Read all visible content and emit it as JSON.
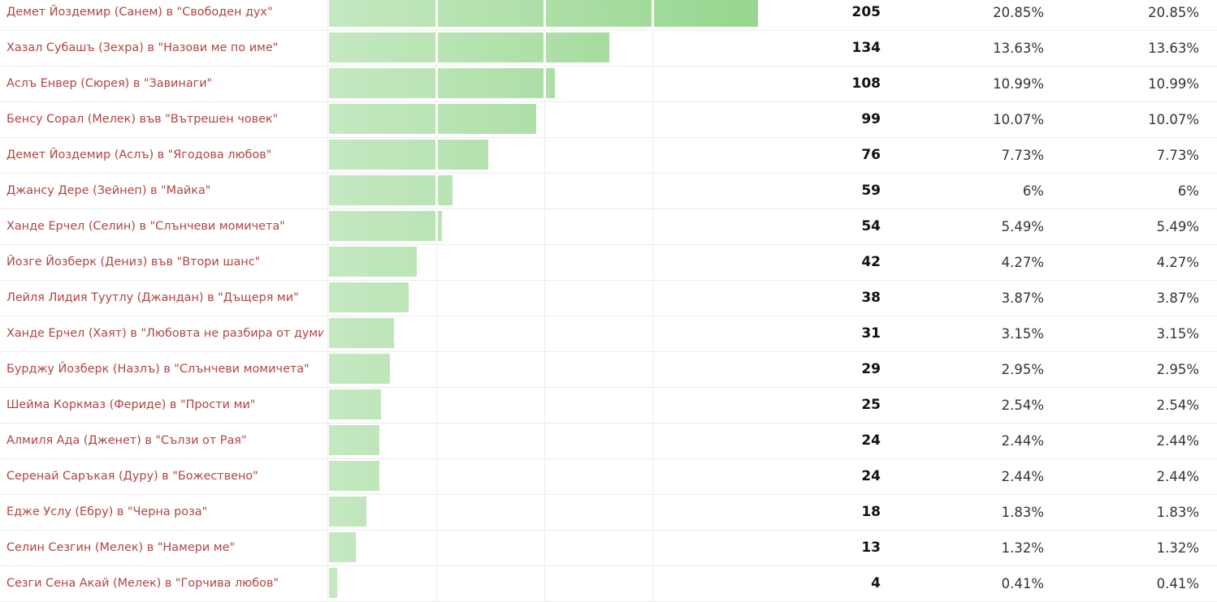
{
  "poll": {
    "max_votes": 205,
    "colors": {
      "bar_start": "#c5e8c1",
      "bar_end": "#96d68e",
      "label": "#b04542",
      "grid": "#ededed"
    }
  },
  "chart_data": {
    "type": "bar",
    "orientation": "horizontal",
    "categories": [
      "Демет Йоздемир (Санем) в \"Свободен дух\"",
      "Хазал Субашъ (Зехра) в \"Назови ме по име\"",
      "Аслъ Енвер (Сюрея) в \"Завинаги\"",
      "Бенсу Сорал (Мелек) във \"Вътрешен човек\"",
      "Демет Йоздемир (Аслъ) в \"Ягодова любов\"",
      "Джансу Дере (Зейнеп) в \"Майка\"",
      "Ханде Ерчел (Селин) в \"Слънчеви момичета\"",
      "Йозге Йозберк (Дениз) във \"Втори шанс\"",
      "Лейля Лидия Туутлу (Джандан) в \"Дъщеря ми\"",
      "Ханде Ерчел (Хаят) в \"Любовта не разбира от думи\"",
      "Бурджу Йозберк (Назлъ) в \"Слънчеви момичета\"",
      "Шейма Коркмаз (Фериде) в \"Прости ми\"",
      "Алмиля Ада (Дженет) в \"Сълзи от Рая\"",
      "Серенай Саръкая (Дуру) в \"Божествено\"",
      "Едже Услу (Ебру) в \"Черна роза\"",
      "Селин Сезгин (Мелек) в \"Намери ме\"",
      "Сезги Сена Акай (Мелек) в \"Горчива любов\""
    ],
    "values": [
      205,
      134,
      108,
      99,
      76,
      59,
      54,
      42,
      38,
      31,
      29,
      25,
      24,
      24,
      18,
      13,
      4
    ],
    "percent": [
      "20.85%",
      "13.63%",
      "10.99%",
      "10.07%",
      "7.73%",
      "6%",
      "5.49%",
      "4.27%",
      "3.87%",
      "3.15%",
      "2.95%",
      "2.54%",
      "2.44%",
      "2.44%",
      "1.83%",
      "1.32%",
      "0.41%"
    ],
    "percent_repeat": [
      "20.85%",
      "13.63%",
      "10.99%",
      "10.07%",
      "7.73%",
      "6%",
      "5.49%",
      "4.27%",
      "3.87%",
      "3.15%",
      "2.95%",
      "2.54%",
      "2.44%",
      "2.44%",
      "1.83%",
      "1.32%",
      "0.41%"
    ],
    "xlim": [
      0,
      205
    ],
    "grid": true,
    "legend": "none"
  }
}
